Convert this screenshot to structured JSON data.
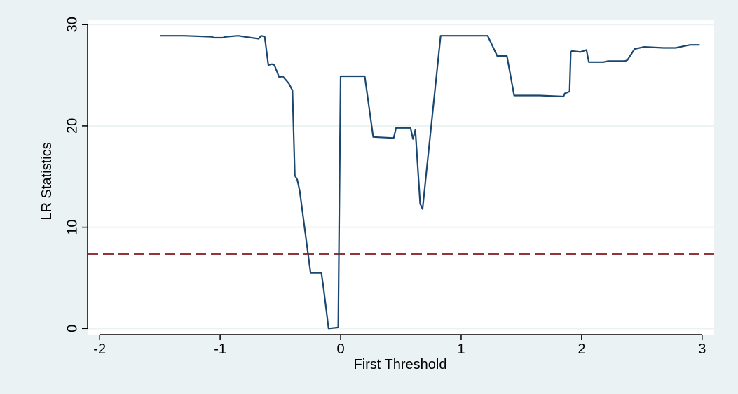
{
  "chart_data": {
    "type": "line",
    "title": "",
    "xlabel": "First Threshold",
    "ylabel": "LR Statistics",
    "xlim": [
      -2.1,
      3.1
    ],
    "ylim": [
      -0.6,
      30.5
    ],
    "xticks": [
      -2,
      -1,
      0,
      1,
      2,
      3
    ],
    "xtick_labels": [
      "-2",
      "-1",
      "0",
      "1",
      "2",
      "3"
    ],
    "yticks": [
      0,
      10,
      20,
      30
    ],
    "ytick_labels": [
      "0",
      "10",
      "20",
      "30"
    ],
    "grid": true,
    "legend": "none",
    "colors": {
      "line": "#1a476f",
      "reference": "#90353b",
      "plot_bg": "#ffffff",
      "outer_bg": "#eaf2f3",
      "grid": "#eaf2f3"
    },
    "reference_line": {
      "y": 7.35,
      "style": "dashed"
    },
    "series": [
      {
        "x": [
          -1.5,
          -1.3,
          -1.07,
          -1.05,
          -0.98,
          -0.95,
          -0.85,
          -0.8,
          -0.68,
          -0.66,
          -0.63,
          -0.6,
          -0.57,
          -0.55,
          -0.51,
          -0.48,
          -0.46,
          -0.43,
          -0.4,
          -0.38,
          -0.36,
          -0.34,
          -0.25,
          -0.24,
          -0.16,
          -0.14,
          -0.1,
          -0.02,
          -0.01,
          0.0,
          0.2,
          0.27,
          0.44,
          0.46,
          0.58,
          0.6,
          0.62,
          0.66,
          0.68,
          0.83,
          1.22,
          1.3,
          1.38,
          1.44,
          1.65,
          1.85,
          1.86,
          1.88,
          1.9,
          1.91,
          1.92,
          1.99,
          2.04,
          2.06,
          2.18,
          2.22,
          2.24,
          2.36,
          2.38,
          2.44,
          2.52,
          2.68,
          2.78,
          2.86,
          2.9,
          2.98
        ],
        "y": [
          28.9,
          28.9,
          28.8,
          28.7,
          28.7,
          28.8,
          28.9,
          28.8,
          28.6,
          28.9,
          28.8,
          26.0,
          26.1,
          26.0,
          24.8,
          24.9,
          24.6,
          24.2,
          23.5,
          15.1,
          14.7,
          13.6,
          5.5,
          5.5,
          5.5,
          3.8,
          0.0,
          0.1,
          13.0,
          24.9,
          24.9,
          18.9,
          18.8,
          19.8,
          19.8,
          18.7,
          19.6,
          12.3,
          11.8,
          28.9,
          28.9,
          26.9,
          26.9,
          23.0,
          23.0,
          22.9,
          23.2,
          23.3,
          23.4,
          27.3,
          27.4,
          27.3,
          27.5,
          26.3,
          26.3,
          26.4,
          26.4,
          26.4,
          26.5,
          27.6,
          27.8,
          27.7,
          27.7,
          27.9,
          28.0,
          28.0
        ]
      }
    ]
  }
}
